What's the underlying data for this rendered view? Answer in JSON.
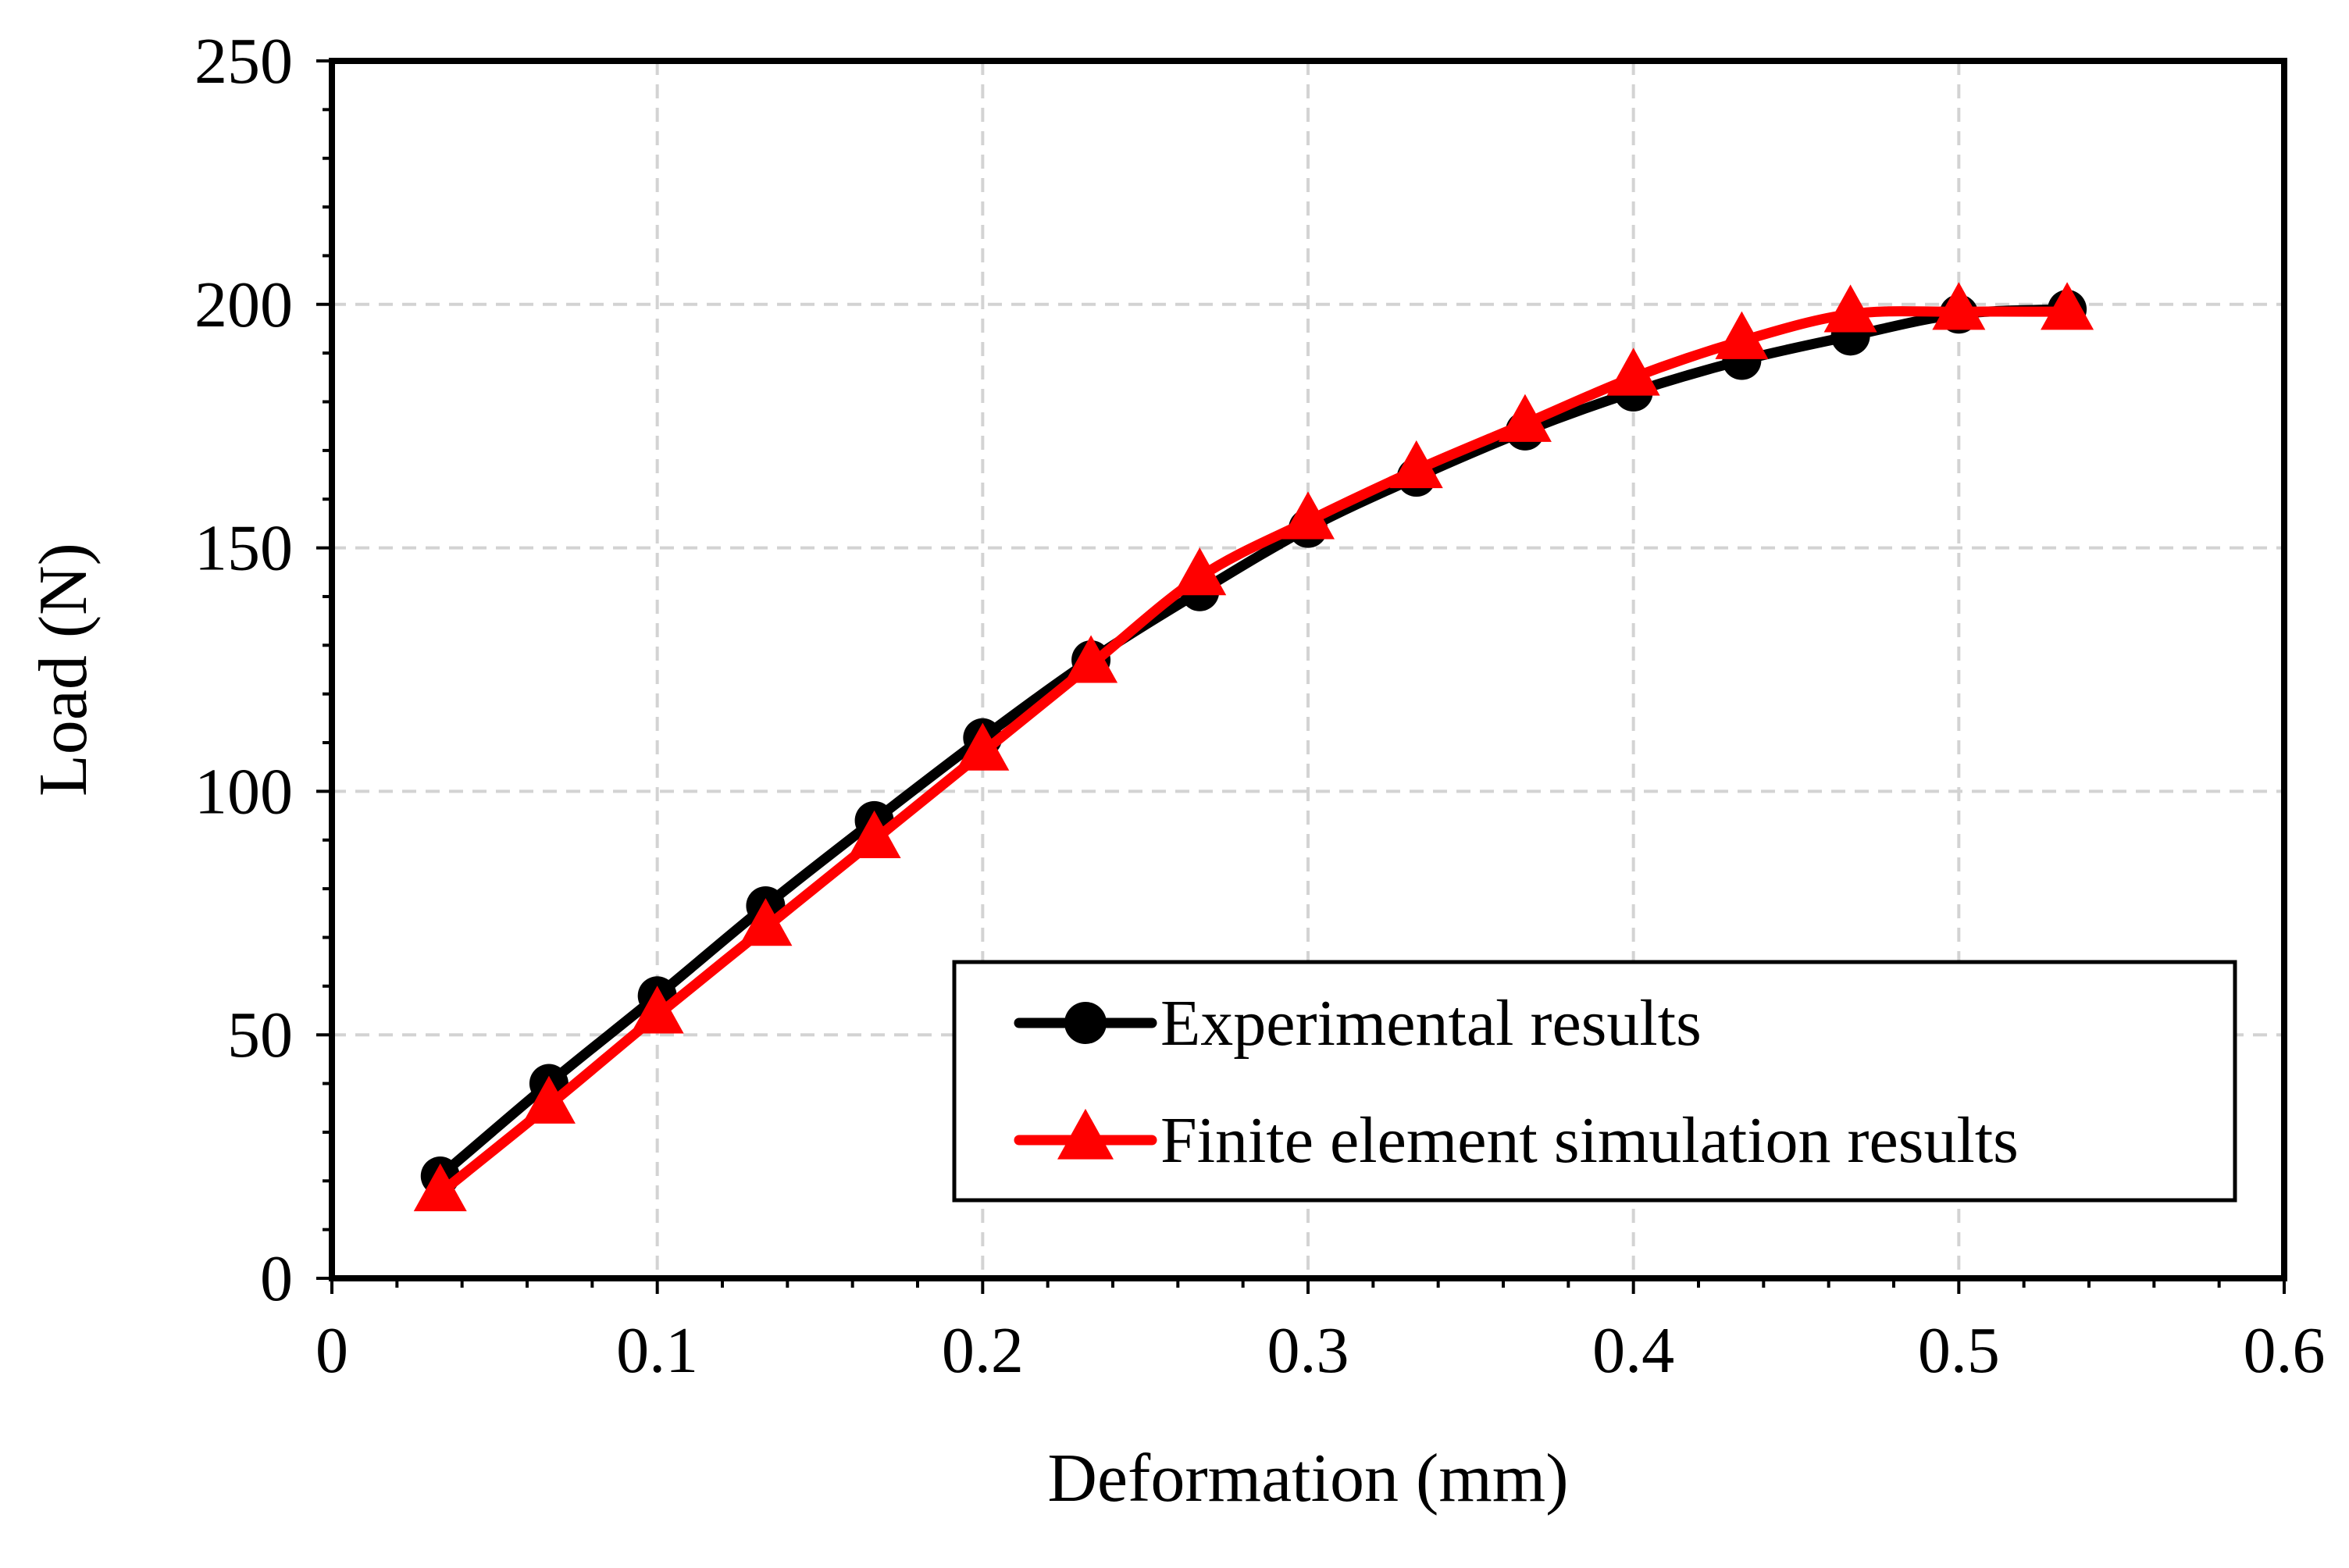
{
  "chart_data": {
    "type": "line",
    "title": "",
    "xlabel": "Deformation (mm)",
    "ylabel": "Load (N)",
    "xlim": [
      0,
      0.6
    ],
    "ylim": [
      0,
      250
    ],
    "grid": true,
    "x_ticks": [
      0,
      0.1,
      0.2,
      0.3,
      0.4,
      0.5,
      0.6
    ],
    "x_tick_labels": [
      "0",
      "0.1",
      "0.2",
      "0.3",
      "0.4",
      "0.5",
      "0.6"
    ],
    "y_ticks": [
      0,
      50,
      100,
      150,
      200,
      250
    ],
    "y_tick_labels": [
      "0",
      "50",
      "100",
      "150",
      "200",
      "250"
    ],
    "legend_position": "bottom-right",
    "series": [
      {
        "name": "Experimental results",
        "color": "#000000",
        "marker": "circle",
        "x": [
          0.0333,
          0.0667,
          0.1,
          0.1333,
          0.1667,
          0.2,
          0.2333,
          0.2667,
          0.3,
          0.3333,
          0.3667,
          0.4,
          0.4333,
          0.4667,
          0.5,
          0.5333
        ],
        "y": [
          21,
          40,
          58,
          76.5,
          94,
          111,
          127,
          141,
          154,
          164.5,
          174,
          182,
          188.5,
          193.5,
          198,
          199
        ]
      },
      {
        "name": "Finite element simulation results",
        "color": "#ff0000",
        "marker": "triangle",
        "x": [
          0.0333,
          0.0667,
          0.1,
          0.1333,
          0.1667,
          0.2,
          0.2333,
          0.2667,
          0.3,
          0.3333,
          0.3667,
          0.4,
          0.4333,
          0.4667,
          0.5,
          0.5333
        ],
        "y": [
          17.5,
          35.5,
          54,
          72,
          90,
          108,
          126,
          144,
          155.5,
          166,
          175.5,
          185,
          192.5,
          198,
          198.5,
          198.5
        ]
      }
    ]
  }
}
